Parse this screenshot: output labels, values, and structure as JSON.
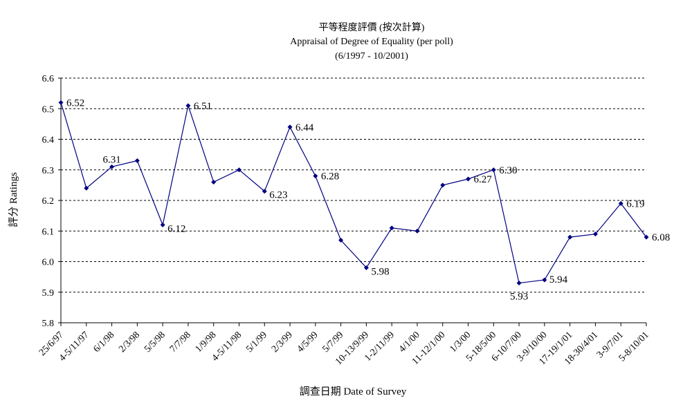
{
  "chart_data": {
    "type": "line",
    "title": "平等程度評價 (按次計算)",
    "subtitle": "Appraisal of Degree of Equality (per poll)",
    "subtitle2": "(6/1997 - 10/2001)",
    "xlabel": "調查日期 Date of Survey",
    "ylabel": "評分 Ratings",
    "ylim": [
      5.8,
      6.6
    ],
    "yticks": [
      "5.8",
      "5.9",
      "6.0",
      "6.1",
      "6.2",
      "6.3",
      "6.4",
      "6.5",
      "6.6"
    ],
    "grid": true,
    "legend": "none",
    "line_color": "#000080",
    "categories": [
      "25/6/97",
      "4-5/11/97",
      "6/1/98",
      "2/3/98",
      "5/5/98",
      "7/7/98",
      "1/9/98",
      "4-5/11/98",
      "5/1/99",
      "2/3/99",
      "4/5/99",
      "5/7/99",
      "10-13/9/99",
      "1-2/11/99",
      "4/1/00",
      "11-12/1/00",
      "1/3/00",
      "5-18/5/00",
      "6-10/7/00",
      "3-9/10/00",
      "17-19/1/01",
      "18-30/4/01",
      "3-9/7/01",
      "5-8/10/01"
    ],
    "series": [
      {
        "values": [
          6.52,
          6.24,
          6.31,
          6.33,
          6.12,
          6.51,
          6.26,
          6.3,
          6.23,
          6.44,
          6.28,
          6.07,
          5.98,
          6.11,
          6.1,
          6.25,
          6.27,
          6.3,
          5.93,
          5.94,
          6.08,
          6.09,
          6.19,
          6.08
        ]
      }
    ],
    "data_labels": [
      {
        "index": 0,
        "text": "6.52"
      },
      {
        "index": 2,
        "text": "6.31"
      },
      {
        "index": 4,
        "text": "6.12"
      },
      {
        "index": 5,
        "text": "6.51"
      },
      {
        "index": 8,
        "text": "6.23"
      },
      {
        "index": 9,
        "text": "6.44"
      },
      {
        "index": 10,
        "text": "6.28"
      },
      {
        "index": 12,
        "text": "5.98"
      },
      {
        "index": 16,
        "text": "6.27"
      },
      {
        "index": 17,
        "text": "6.30"
      },
      {
        "index": 18,
        "text": "5.93"
      },
      {
        "index": 19,
        "text": "5.94"
      },
      {
        "index": 22,
        "text": "6.19"
      },
      {
        "index": 23,
        "text": "6.08"
      }
    ]
  }
}
